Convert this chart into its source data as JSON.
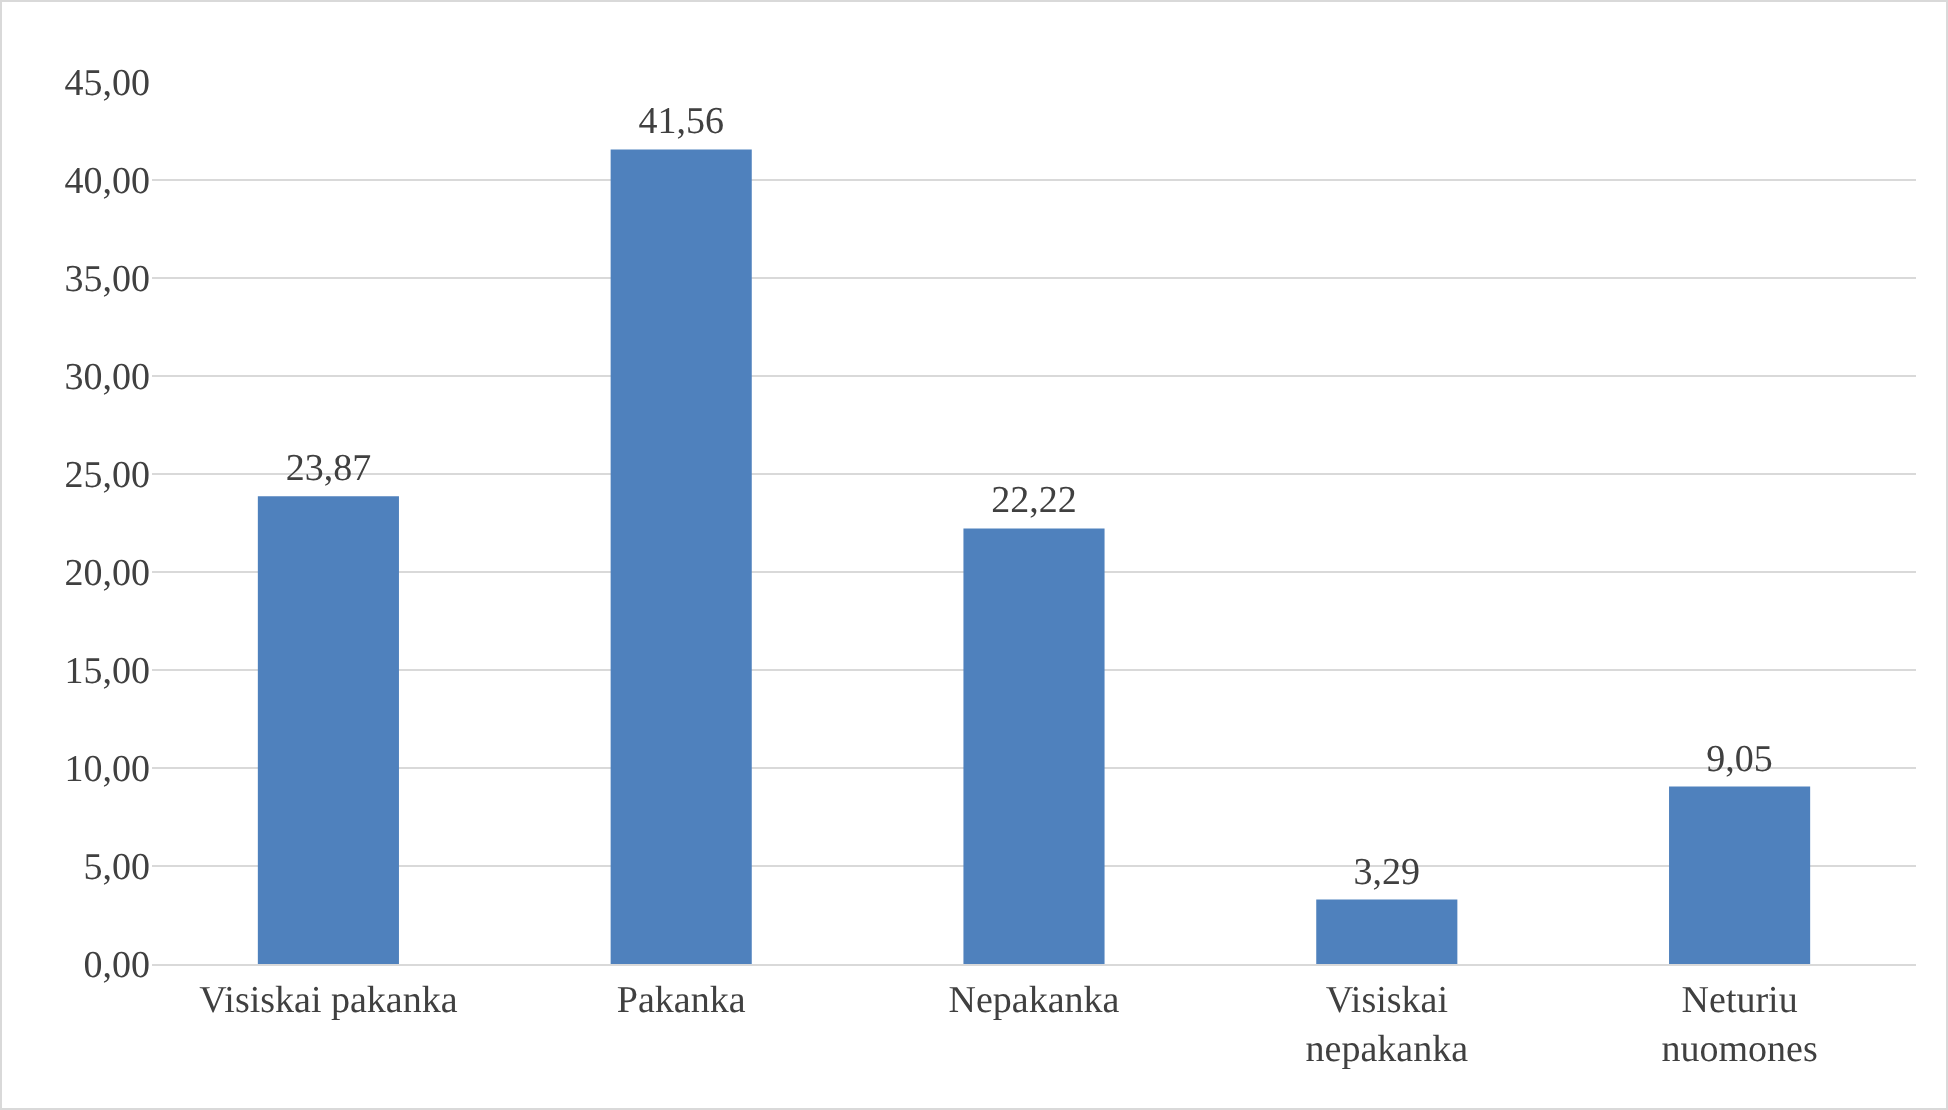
{
  "chart_data": {
    "type": "bar",
    "categories": [
      "Visiskai pakanka",
      "Pakanka",
      "Nepakanka",
      "Visiskai\nnepakanka",
      "Neturiu\nnuomones"
    ],
    "values": [
      23.87,
      41.56,
      22.22,
      3.29,
      9.05
    ],
    "value_labels": [
      "23,87",
      "41,56",
      "22,22",
      "3,29",
      "9,05"
    ],
    "color": "#4f81bd",
    "ylim": [
      0,
      45
    ],
    "yticks": [
      {
        "value": 0,
        "label": "0,00"
      },
      {
        "value": 5,
        "label": "5,00"
      },
      {
        "value": 10,
        "label": "10,00"
      },
      {
        "value": 15,
        "label": "15,00"
      },
      {
        "value": 20,
        "label": "20,00"
      },
      {
        "value": 25,
        "label": "25,00"
      },
      {
        "value": 30,
        "label": "30,00"
      },
      {
        "value": 35,
        "label": "35,00"
      },
      {
        "value": 40,
        "label": "40,00"
      },
      {
        "value": 45,
        "label": "45,00"
      }
    ],
    "grid": "y"
  }
}
